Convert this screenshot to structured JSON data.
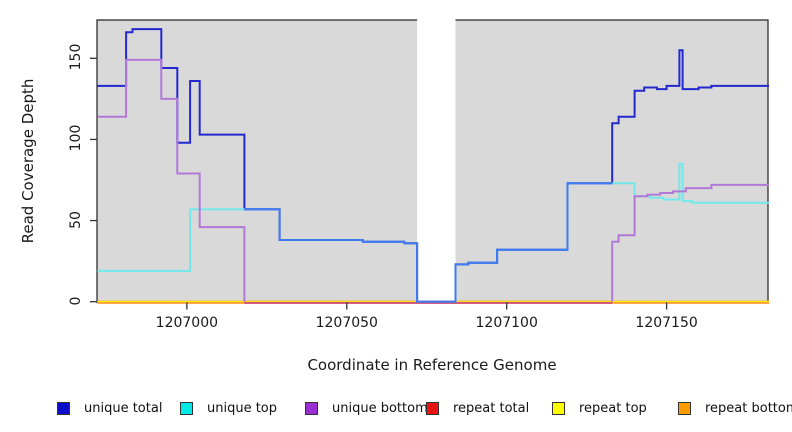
{
  "chart_data": {
    "type": "line",
    "subtype": "step-coverage-plot",
    "title": "",
    "xlabel": "Coordinate in Reference Genome",
    "ylabel": "Read Coverage Depth",
    "plot_bg_color": "#d9d9d9",
    "x_axis": {
      "range": [
        1206972,
        1207182
      ],
      "ticks": [
        1207000,
        1207050,
        1207100,
        1207150
      ],
      "tick_labels": [
        "1207000",
        "1207050",
        "1207100",
        "1207150"
      ]
    },
    "y_axis": {
      "range": [
        0,
        174
      ],
      "ticks": [
        0,
        50,
        100,
        150
      ],
      "tick_labels": [
        "0",
        "50",
        "100",
        "150"
      ]
    },
    "gap_region": {
      "x0": 1207072,
      "x1": 1207084,
      "color": "#ffffff"
    },
    "legend": {
      "position": "bottom",
      "items": [
        {
          "label": "unique total",
          "color": "#0d0dcc"
        },
        {
          "label": "unique top",
          "color": "#00e8e8"
        },
        {
          "label": "unique bottom",
          "color": "#9a2fd1"
        },
        {
          "label": "repeat total",
          "color": "#e81414"
        },
        {
          "label": "repeat top",
          "color": "#fdfd00"
        },
        {
          "label": "repeat bottom",
          "color": "#ff9d00"
        }
      ]
    },
    "series": [
      {
        "name": "repeat total",
        "color": "#e81414",
        "segments": [
          {
            "steps": [
              [
                1206972,
                0
              ]
            ],
            "end_x": 1207182
          }
        ]
      },
      {
        "name": "repeat top",
        "color": "#fdfd00",
        "segments": [
          {
            "steps": [
              [
                1206972,
                0
              ]
            ],
            "end_x": 1207182
          }
        ]
      },
      {
        "name": "repeat bottom",
        "color": "#ff9f33",
        "zero_offset": 1.2,
        "segments": [
          {
            "steps": [
              [
                1206972,
                0
              ]
            ],
            "end_x": 1207182
          }
        ]
      },
      {
        "name": "unique total",
        "color": "#2429cf",
        "segments": [
          {
            "steps": [
              [
                1206972,
                133
              ],
              [
                1206981,
                166
              ],
              [
                1206983,
                168
              ],
              [
                1206992,
                144
              ],
              [
                1206997,
                98
              ],
              [
                1207001,
                136
              ],
              [
                1207004,
                103
              ],
              [
                1207018,
                57
              ],
              [
                1207029,
                38
              ],
              [
                1207055,
                37
              ],
              [
                1207068,
                36
              ],
              [
                1207072,
                0
              ],
              [
                1207084,
                23
              ],
              [
                1207088,
                24
              ],
              [
                1207097,
                32
              ],
              [
                1207119,
                73
              ],
              [
                1207133,
                110
              ],
              [
                1207135,
                114
              ],
              [
                1207140,
                130
              ],
              [
                1207143,
                132
              ],
              [
                1207147,
                131
              ],
              [
                1207150,
                133
              ],
              [
                1207154,
                155
              ],
              [
                1207155,
                131
              ],
              [
                1207160,
                132
              ],
              [
                1207164,
                133
              ]
            ],
            "end_x": 1207182
          }
        ]
      },
      {
        "name": "unique top",
        "color": "#72e8ea",
        "segments": [
          {
            "steps": [
              [
                1206972,
                19
              ],
              [
                1207001,
                57
              ]
            ],
            "end_x": 1207018
          },
          {
            "steps": [
              [
                1207133,
                73
              ],
              [
                1207140,
                65
              ],
              [
                1207145,
                64
              ],
              [
                1207149,
                63
              ],
              [
                1207154,
                85
              ],
              [
                1207155,
                62
              ],
              [
                1207158,
                61
              ]
            ],
            "end_x": 1207182
          }
        ]
      },
      {
        "name": "unique bottom",
        "color": "#b278d8",
        "segments": [
          {
            "steps": [
              [
                1206972,
                114
              ],
              [
                1206981,
                149
              ],
              [
                1206992,
                125
              ],
              [
                1206997,
                79
              ],
              [
                1207004,
                46
              ],
              [
                1207018,
                0
              ]
            ],
            "end_x": 1207018
          },
          {
            "start_v": 0,
            "steps": [
              [
                1207133,
                37
              ],
              [
                1207135,
                41
              ],
              [
                1207140,
                65
              ],
              [
                1207144,
                66
              ],
              [
                1207148,
                67
              ],
              [
                1207152,
                68
              ],
              [
                1207156,
                70
              ],
              [
                1207164,
                72
              ]
            ],
            "end_x": 1207182
          }
        ]
      }
    ],
    "overlaps": [
      {
        "name": "unique bottom + repeats at zero",
        "color": "#d1517d",
        "zero_offset": 1.2,
        "segments": [
          {
            "steps": [
              [
                1207018,
                0
              ]
            ],
            "end_x": 1207133
          }
        ]
      },
      {
        "name": "unique total coincides with unique top",
        "color": "#3d7df1",
        "segments": [
          {
            "steps": [
              [
                1207018,
                57
              ],
              [
                1207029,
                38
              ],
              [
                1207055,
                37
              ],
              [
                1207068,
                36
              ],
              [
                1207072,
                0
              ],
              [
                1207084,
                23
              ],
              [
                1207088,
                24
              ],
              [
                1207097,
                32
              ],
              [
                1207119,
                73
              ]
            ],
            "end_x": 1207133
          }
        ]
      }
    ]
  }
}
